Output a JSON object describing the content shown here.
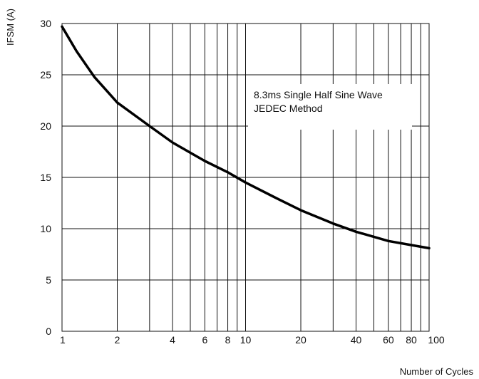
{
  "chart_data": {
    "type": "line",
    "title": "",
    "ylabel": "IFSM (A)",
    "xlabel": "Number of Cycles",
    "x_scale": "log",
    "xlim": [
      1,
      100
    ],
    "ylim": [
      0,
      30
    ],
    "grid": true,
    "x_ticks": [
      1,
      2,
      4,
      6,
      8,
      10,
      20,
      40,
      60,
      80,
      100
    ],
    "y_ticks": [
      0,
      5,
      10,
      15,
      20,
      25,
      30
    ],
    "annotation": [
      "8.3ms Single Half Sine Wave",
      "JEDEC Method"
    ],
    "series": [
      {
        "x": [
          1,
          1.2,
          1.5,
          2,
          3,
          4,
          5,
          6,
          8,
          10,
          15,
          20,
          30,
          40,
          60,
          80,
          100
        ],
        "y": [
          29.7,
          27.3,
          24.8,
          22.3,
          20.0,
          18.4,
          17.4,
          16.6,
          15.5,
          14.5,
          12.9,
          11.8,
          10.5,
          9.7,
          8.8,
          8.4,
          8.1
        ]
      }
    ]
  }
}
